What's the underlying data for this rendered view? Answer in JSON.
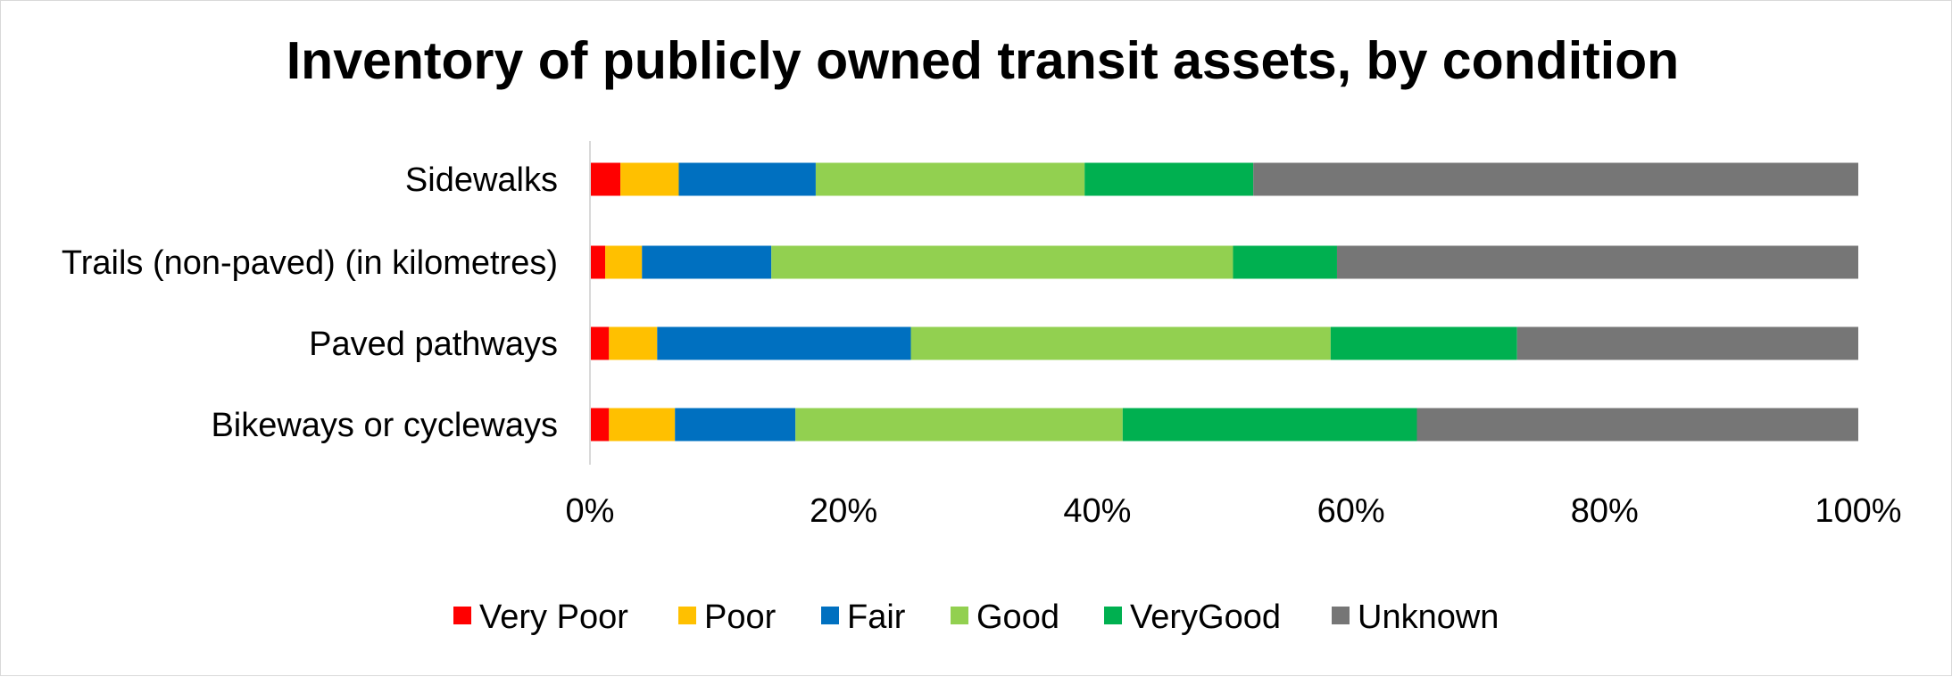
{
  "chart_data": {
    "type": "stacked-bar-horizontal-100",
    "title": "Inventory of publicly owned transit assets, by condition",
    "categories": [
      "Sidewalks",
      "Trails (non-paved) (in kilometres)",
      "Paved pathways",
      "Bikeways or cycleways"
    ],
    "series": [
      {
        "name": "Very Poor",
        "color": "#ff0000",
        "values": [
          2.4,
          1.2,
          1.5,
          1.5
        ]
      },
      {
        "name": "Poor",
        "color": "#ffc000",
        "values": [
          4.6,
          2.9,
          3.8,
          5.2
        ]
      },
      {
        "name": "Fair",
        "color": "#0070c0",
        "values": [
          10.8,
          10.2,
          20.0,
          9.5
        ]
      },
      {
        "name": "Good",
        "color": "#92d050",
        "values": [
          21.2,
          36.4,
          33.1,
          25.8
        ]
      },
      {
        "name": "VeryGood",
        "color": "#00b050",
        "values": [
          13.3,
          8.2,
          14.7,
          23.2
        ]
      },
      {
        "name": "Unknown",
        "color": "#767676",
        "values": [
          47.7,
          41.1,
          26.9,
          34.8
        ]
      }
    ],
    "xaxis": {
      "min": 0,
      "max": 100,
      "ticks": [
        "0%",
        "20%",
        "40%",
        "60%",
        "80%",
        "100%"
      ]
    },
    "legend_position": "bottom",
    "grid": false
  }
}
